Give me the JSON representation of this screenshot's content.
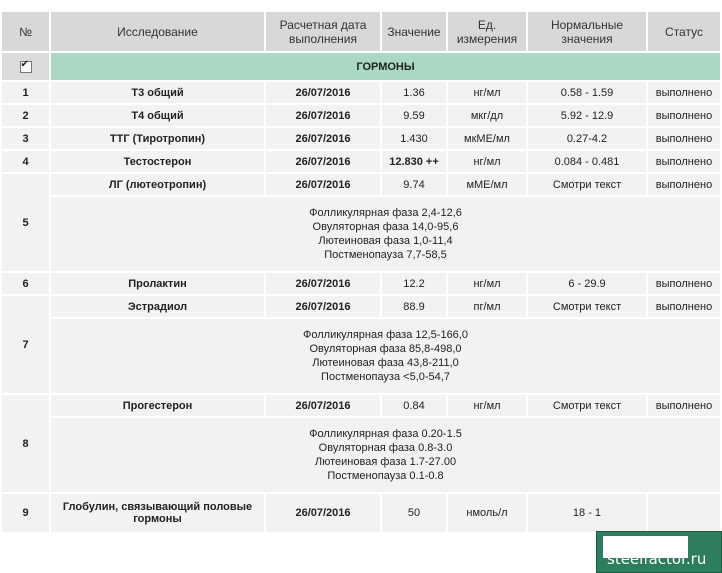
{
  "header": {
    "num": "№",
    "test": "Исследование",
    "date_line1": "Расчетная дата",
    "date_line2": "выполнения",
    "value": "Значение",
    "unit_line1": "Ед.",
    "unit_line2": "измерения",
    "normal_line1": "Нормальные",
    "normal_line2": "значения",
    "status": "Статус"
  },
  "section": {
    "title": "ГОРМОНЫ",
    "checked": true
  },
  "rows": [
    {
      "num": "1",
      "name": "Т3 общий",
      "date": "26/07/2016",
      "value": "1.36",
      "unit": "нг/мл",
      "normal": "0.58 - 1.59",
      "status": "выполнено"
    },
    {
      "num": "2",
      "name": "Т4 общий",
      "date": "26/07/2016",
      "value": "9.59",
      "unit": "мкг/дл",
      "normal": "5.92 - 12.9",
      "status": "выполнено"
    },
    {
      "num": "3",
      "name": "ТТГ (Тиротропин)",
      "date": "26/07/2016",
      "value": "1.430",
      "unit": "мкМЕ/мл",
      "normal": "0.27-4.2",
      "status": "выполнено"
    },
    {
      "num": "4",
      "name": "Тестостерон",
      "date": "26/07/2016",
      "value": "12.830 ++",
      "unit": "нг/мл",
      "normal": "0.084 - 0.481",
      "status": "выполнено"
    },
    {
      "num": "5",
      "name": "ЛГ (лютеотропин)",
      "date": "26/07/2016",
      "value": "9.74",
      "unit": "мМЕ/мл",
      "normal": "Смотри текст",
      "status": "выполнено",
      "notes": [
        "Фолликулярная фаза 2,4-12,6",
        "Овуляторная фаза 14,0-95,6",
        "Лютеиновая фаза 1,0-11,4",
        "Постменопауза 7,7-58,5"
      ]
    },
    {
      "num": "6",
      "name": "Пролактин",
      "date": "26/07/2016",
      "value": "12.2",
      "unit": "нг/мл",
      "normal": "6 - 29.9",
      "status": "выполнено"
    },
    {
      "num": "7",
      "name": "Эстрадиол",
      "date": "26/07/2016",
      "value": "88.9",
      "unit": "пг/мл",
      "normal": "Смотри текст",
      "status": "выполнено",
      "notes": [
        "Фолликулярная фаза 12,5-166,0",
        "Овуляторная фаза 85,8-498,0",
        "Лютеиновая фаза 43,8-211,0",
        "Постменопауза <5,0-54,7"
      ]
    },
    {
      "num": "8",
      "name": "Прогестерон",
      "date": "26/07/2016",
      "value": "0.84",
      "unit": "нг/мл",
      "normal": "Смотри текст",
      "status": "выполнено",
      "notes": [
        "Фолликулярная фаза 0.20-1.5",
        "Овуляторная фаза 0.8-3.0",
        "Лютеиновая фаза 1.7-27.00",
        "Постменопауза 0.1-0.8"
      ]
    },
    {
      "num": "9",
      "name": "Глобулин, связывающий половые гормоны",
      "date": "26/07/2016",
      "value": "50",
      "unit": "нмоль/л",
      "normal": "18 - 1",
      "status": ""
    }
  ],
  "watermark": "steelfactor.ru"
}
